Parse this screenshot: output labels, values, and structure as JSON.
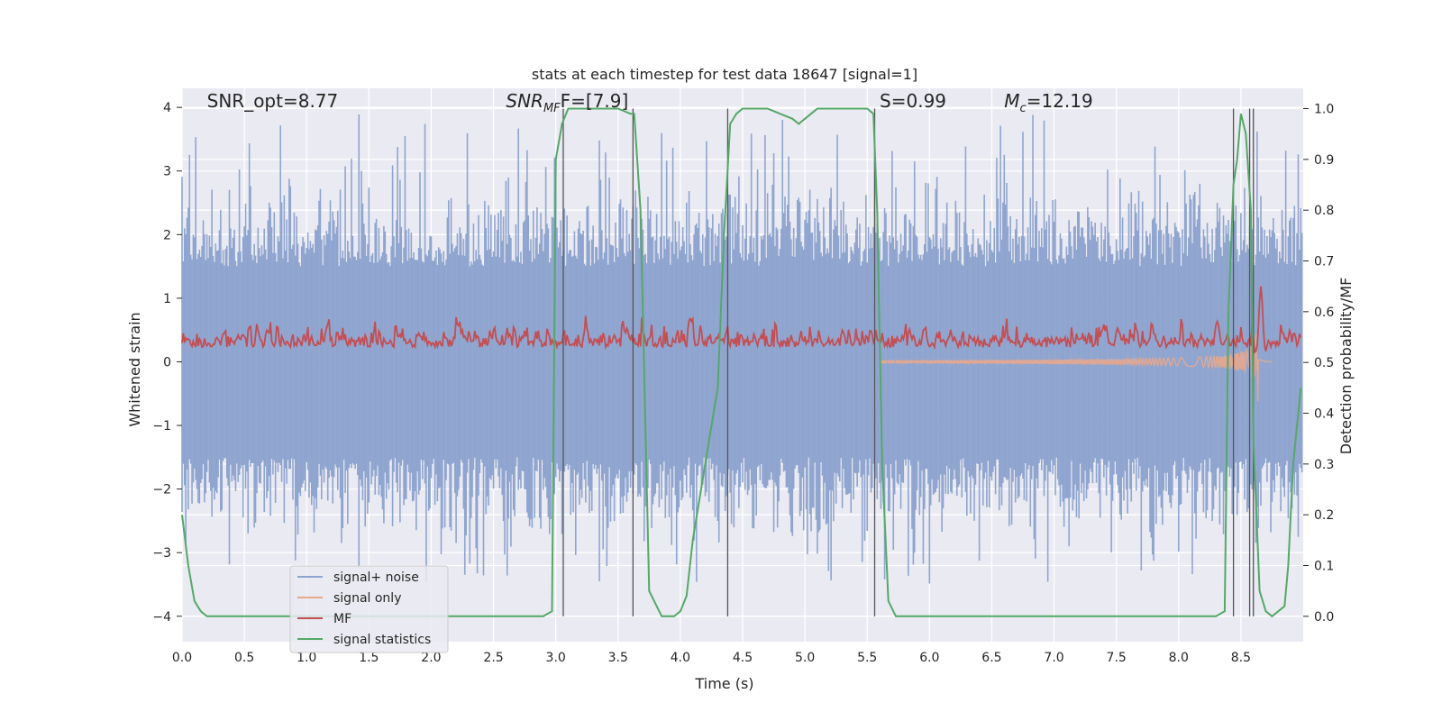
{
  "chart_data": {
    "type": "line",
    "title": "stats at each timestep for test data 18647 [signal=1]",
    "xlabel": "Time (s)",
    "ylabel_left": "Whitened strain",
    "ylabel_right": "Detection probability/MF",
    "xlim": [
      0.0,
      9.0
    ],
    "ylim_left": [
      -4.4,
      4.3
    ],
    "ylim_right": [
      -0.05,
      1.04
    ],
    "xticks": [
      "0.0",
      "0.5",
      "1.0",
      "1.5",
      "2.0",
      "2.5",
      "3.0",
      "3.5",
      "4.0",
      "4.5",
      "5.0",
      "5.5",
      "6.0",
      "6.5",
      "7.0",
      "7.5",
      "8.0",
      "8.5"
    ],
    "xtick_values": [
      0,
      0.5,
      1,
      1.5,
      2,
      2.5,
      3,
      3.5,
      4,
      4.5,
      5,
      5.5,
      6,
      6.5,
      7,
      7.5,
      8,
      8.5
    ],
    "yticks_left": [
      "−4",
      "−3",
      "−2",
      "−1",
      "0",
      "1",
      "2",
      "3",
      "4"
    ],
    "ytick_values_left": [
      -4,
      -3,
      -2,
      -1,
      0,
      1,
      2,
      3,
      4
    ],
    "yticks_right": [
      "0.0",
      "0.1",
      "0.2",
      "0.3",
      "0.4",
      "0.5",
      "0.6",
      "0.7",
      "0.8",
      "0.9",
      "1.0"
    ],
    "ytick_values_right": [
      0,
      0.1,
      0.2,
      0.3,
      0.4,
      0.5,
      0.6,
      0.7,
      0.8,
      0.9,
      1.0
    ],
    "grid": true,
    "legend_position": "bottom-left",
    "annotations": [
      {
        "id": "snr-opt",
        "text": "SNR_opt=8.77",
        "x": 0.2,
        "y": 4.1
      },
      {
        "id": "snr-mf",
        "text": "SNR",
        "sub": "MF",
        "tail": "F=[7.9]",
        "x": 2.6,
        "y": 4.1
      },
      {
        "id": "s-value",
        "text": "S=0.99",
        "x": 5.6,
        "y": 4.1
      },
      {
        "id": "mc-value",
        "text": "=12.19",
        "prefix": "M",
        "sub": "c",
        "x": 6.6,
        "y": 4.1
      }
    ],
    "series": [
      {
        "name": "signal+ noise",
        "color": "#8fa5cf",
        "style": "bars",
        "amplitude": 1.6,
        "n": 900
      },
      {
        "name": "signal only",
        "color": "#e8a88d",
        "style": "chirp",
        "merger_time": 8.65
      },
      {
        "name": "MF",
        "color": "#c44e52",
        "style": "noisy-line",
        "baseline_right": 0.52
      },
      {
        "name": "signal statistics",
        "color": "#55a868",
        "axis": "right",
        "x": [
          0.0,
          0.05,
          0.1,
          0.15,
          0.2,
          0.3,
          0.5,
          1.0,
          1.5,
          2.0,
          2.5,
          2.9,
          2.97,
          3.0,
          3.05,
          3.1,
          3.15,
          3.3,
          3.5,
          3.6,
          3.63,
          3.68,
          3.75,
          3.85,
          3.95,
          4.0,
          4.05,
          4.1,
          4.2,
          4.3,
          4.35,
          4.4,
          4.45,
          4.5,
          4.6,
          4.7,
          4.8,
          4.9,
          4.95,
          5.0,
          5.05,
          5.1,
          5.2,
          5.4,
          5.5,
          5.55,
          5.58,
          5.62,
          5.67,
          5.73,
          5.8,
          6.0,
          6.5,
          7.0,
          7.5,
          8.0,
          8.3,
          8.37,
          8.4,
          8.44,
          8.47,
          8.5,
          8.54,
          8.58,
          8.6,
          8.65,
          8.7,
          8.75,
          8.8,
          8.85,
          8.88,
          8.92,
          8.96,
          8.98
        ],
        "values": [
          0.2,
          0.1,
          0.03,
          0.01,
          0.0,
          0.0,
          0.0,
          0.0,
          0.0,
          0.0,
          0.0,
          0.0,
          0.01,
          0.9,
          0.97,
          1.0,
          1.0,
          1.0,
          1.0,
          0.99,
          0.99,
          0.8,
          0.05,
          0.0,
          0.0,
          0.01,
          0.04,
          0.15,
          0.3,
          0.45,
          0.75,
          0.97,
          0.99,
          1.0,
          1.0,
          1.0,
          0.99,
          0.98,
          0.97,
          0.98,
          0.99,
          1.0,
          1.0,
          1.0,
          1.0,
          0.99,
          0.8,
          0.3,
          0.03,
          0.0,
          0.0,
          0.0,
          0.0,
          0.0,
          0.0,
          0.0,
          0.0,
          0.01,
          0.6,
          0.85,
          0.9,
          0.99,
          0.95,
          0.8,
          0.35,
          0.05,
          0.01,
          0.0,
          0.01,
          0.02,
          0.1,
          0.3,
          0.4,
          0.45
        ]
      }
    ],
    "vertical_markers": [
      3.06,
      3.62,
      4.38,
      5.56,
      8.44,
      8.57,
      8.6
    ]
  }
}
